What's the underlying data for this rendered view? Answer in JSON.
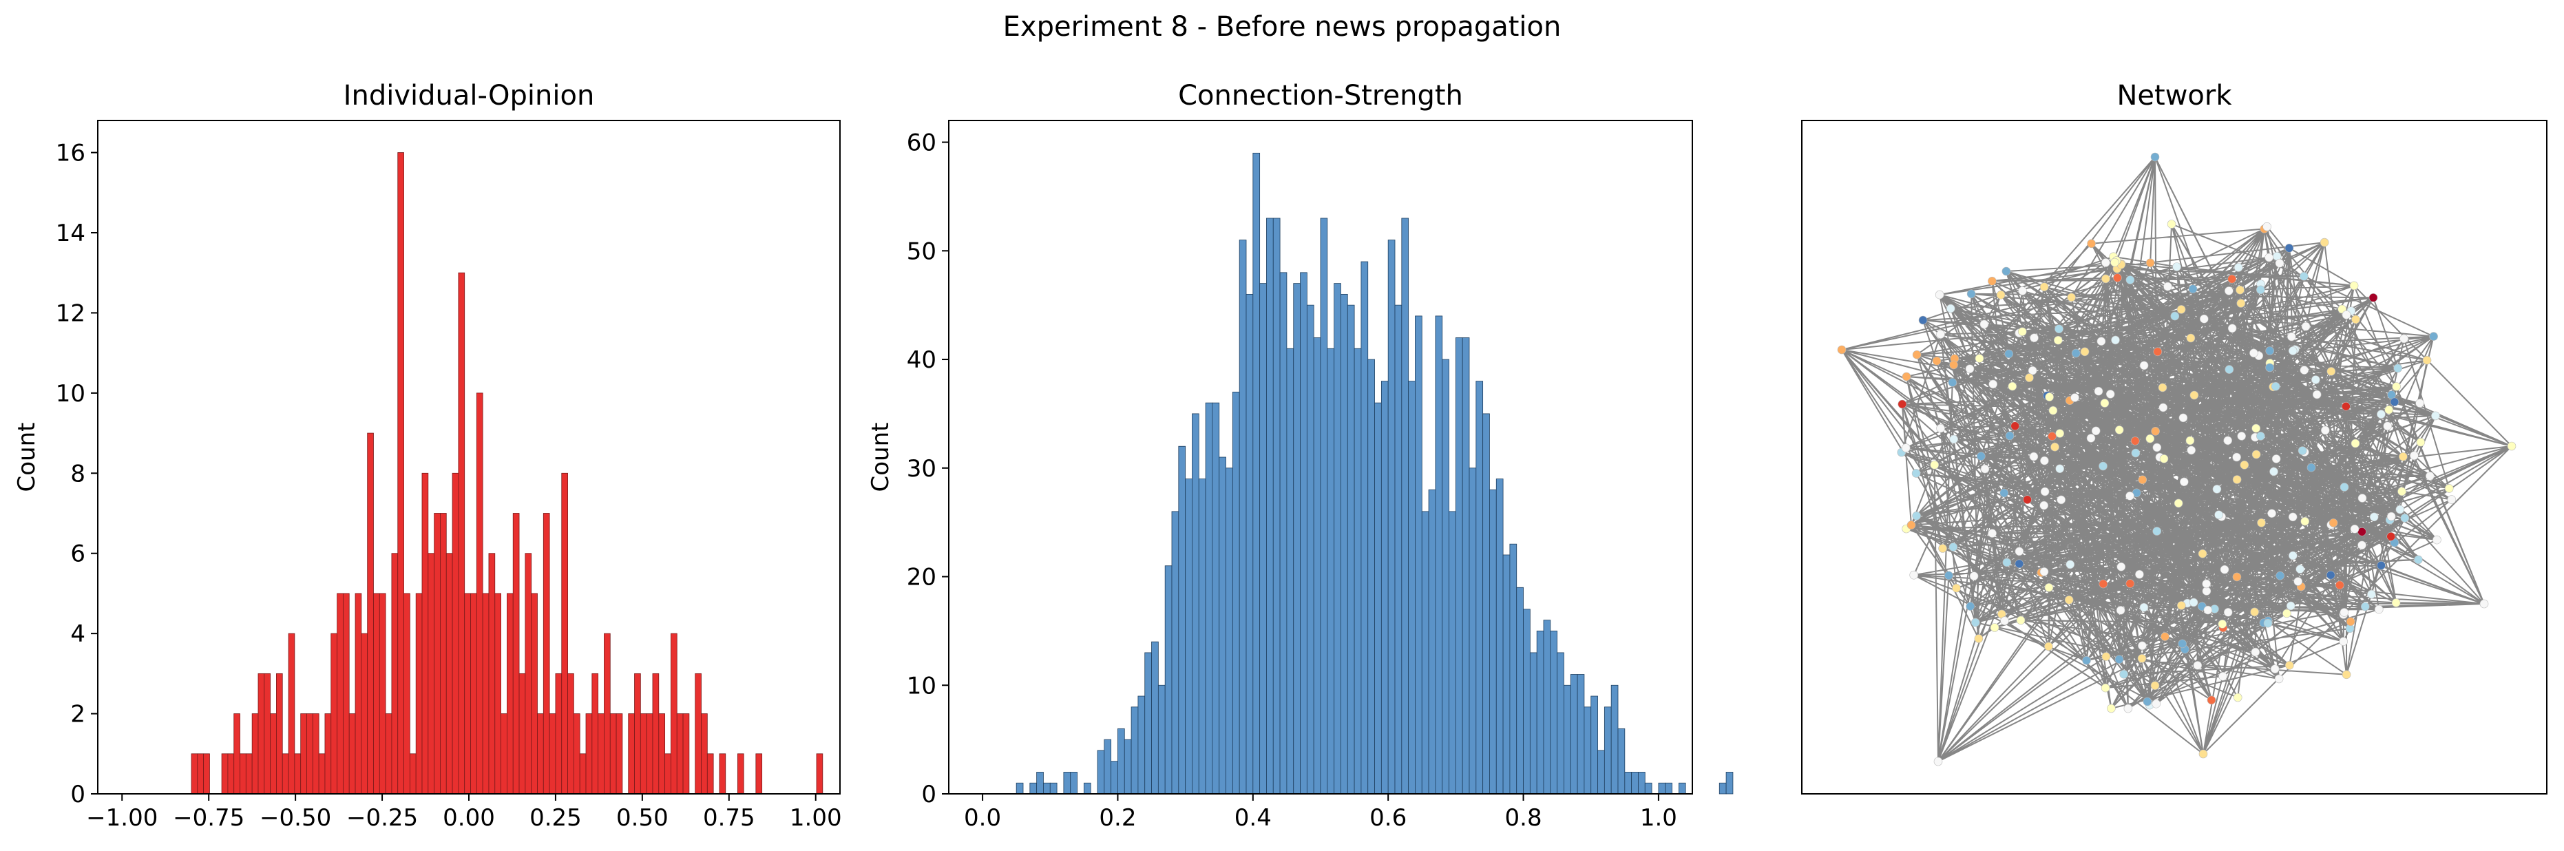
{
  "figure": {
    "suptitle": "Experiment 8 - Before news propagation"
  },
  "chart_data": [
    {
      "type": "bar",
      "subtype": "histogram",
      "title": "Individual-Opinion",
      "xlabel": "",
      "ylabel": "Count",
      "xlim": [
        -1.07,
        1.07
      ],
      "ylim": [
        0,
        16.8
      ],
      "bin_start": -0.8,
      "bin_width": 0.0175,
      "color": "#e8302f",
      "edge_color": "#7a1a1a",
      "xticks": [
        -1.0,
        -0.75,
        -0.5,
        -0.25,
        0.0,
        0.25,
        0.5,
        0.75,
        1.0
      ],
      "xtick_labels": [
        "−1.00",
        "−0.75",
        "−0.50",
        "−0.25",
        "0.00",
        "0.25",
        "0.50",
        "0.75",
        "1.00"
      ],
      "yticks": [
        0,
        2,
        4,
        6,
        8,
        10,
        12,
        14,
        16
      ],
      "ytick_labels": [
        "0",
        "2",
        "4",
        "6",
        "8",
        "10",
        "12",
        "14",
        "16"
      ],
      "values": [
        1,
        1,
        1,
        0,
        0,
        1,
        1,
        2,
        1,
        1,
        2,
        3,
        3,
        2,
        3,
        1,
        4,
        1,
        2,
        2,
        2,
        1,
        2,
        4,
        5,
        5,
        2,
        5,
        4,
        9,
        5,
        5,
        2,
        6,
        16,
        5,
        1,
        5,
        8,
        6,
        7,
        7,
        6,
        8,
        13,
        5,
        5,
        10,
        5,
        6,
        5,
        2,
        5,
        7,
        3,
        6,
        5,
        2,
        7,
        2,
        3,
        8,
        3,
        2,
        1,
        2,
        3,
        2,
        4,
        2,
        2,
        0,
        2,
        3,
        2,
        2,
        3,
        2,
        1,
        4,
        2,
        2,
        0,
        3,
        2,
        1,
        0,
        1,
        0,
        0,
        1,
        0,
        0,
        1,
        0,
        0,
        0,
        0,
        0,
        0,
        0,
        0,
        0,
        1
      ]
    },
    {
      "type": "bar",
      "subtype": "histogram",
      "title": "Connection-Strength",
      "xlabel": "",
      "ylabel": "Count",
      "xlim": [
        -0.05,
        1.05
      ],
      "ylim": [
        0,
        62
      ],
      "bin_start": 0.01,
      "bin_width": 0.01,
      "color": "#5b93c8",
      "edge_color": "#1f3f5f",
      "xticks": [
        0.0,
        0.2,
        0.4,
        0.6,
        0.8,
        1.0
      ],
      "xtick_labels": [
        "0.0",
        "0.2",
        "0.4",
        "0.6",
        "0.8",
        "1.0"
      ],
      "yticks": [
        0,
        10,
        20,
        30,
        40,
        50,
        60
      ],
      "ytick_labels": [
        "0",
        "10",
        "20",
        "30",
        "40",
        "50",
        "60"
      ],
      "values": [
        0,
        0,
        0,
        0,
        1,
        0,
        1,
        2,
        1,
        1,
        0,
        2,
        2,
        0,
        1,
        0,
        4,
        5,
        3,
        6,
        5,
        8,
        9,
        13,
        14,
        10,
        21,
        26,
        32,
        29,
        35,
        29,
        36,
        36,
        31,
        30,
        37,
        51,
        46,
        59,
        47,
        53,
        53,
        48,
        41,
        47,
        48,
        45,
        42,
        53,
        41,
        47,
        46,
        45,
        41,
        49,
        40,
        36,
        38,
        51,
        45,
        53,
        38,
        44,
        26,
        28,
        44,
        40,
        26,
        42,
        42,
        30,
        38,
        35,
        28,
        29,
        22,
        23,
        19,
        17,
        13,
        15,
        16,
        15,
        13,
        10,
        11,
        11,
        8,
        9,
        4,
        8,
        10,
        6,
        2,
        2,
        2,
        1,
        0,
        1,
        1,
        0,
        1,
        0,
        0,
        0,
        0,
        0,
        1,
        2
      ]
    },
    {
      "type": "network",
      "title": "Network",
      "edge_color": "#808080",
      "node_colormap": "RdYlBu"
    }
  ]
}
